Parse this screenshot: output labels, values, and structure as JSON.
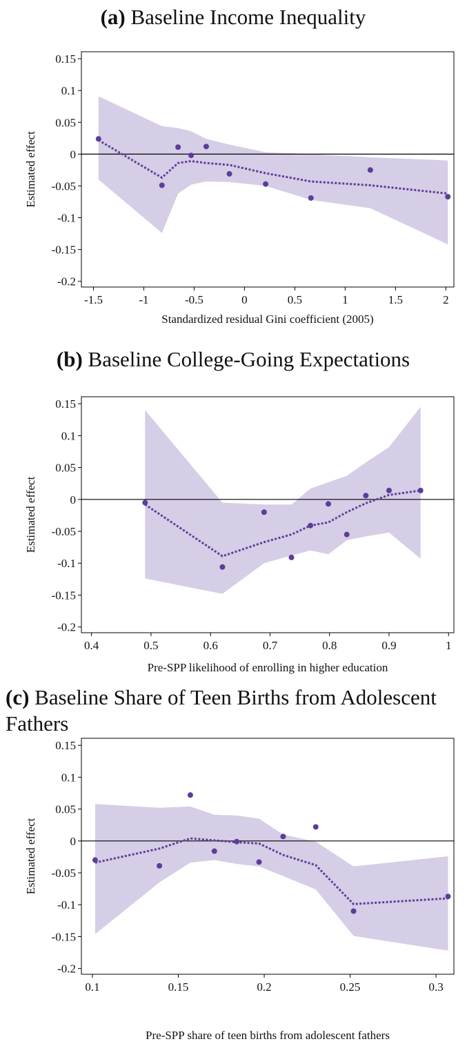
{
  "chart_data": [
    {
      "type": "scatter",
      "panel": "(a)",
      "title": "Baseline Income Inequality",
      "xlabel": "Standardized residual Gini coefficient (2005)",
      "ylabel": "Estimated effect",
      "x": [
        -1.45,
        -0.82,
        -0.66,
        -0.53,
        -0.38,
        -0.15,
        0.21,
        0.66,
        1.25,
        2.02
      ],
      "values": [
        0.024,
        -0.049,
        0.011,
        -0.002,
        0.012,
        -0.031,
        -0.047,
        -0.069,
        -0.025,
        -0.067
      ],
      "fit": [
        0.022,
        -0.037,
        -0.014,
        -0.011,
        -0.014,
        -0.017,
        -0.03,
        -0.043,
        -0.049,
        -0.062
      ],
      "upper": [
        0.091,
        0.044,
        0.041,
        0.036,
        0.024,
        0.015,
        0.003,
        0.0,
        -0.005,
        -0.01
      ],
      "lower": [
        -0.04,
        -0.124,
        -0.062,
        -0.048,
        -0.043,
        -0.044,
        -0.05,
        -0.072,
        -0.085,
        -0.142
      ],
      "color": "#5e3c99",
      "band_color": "#d6cde6",
      "zero_line": true,
      "xlim": [
        -1.62,
        2.08
      ],
      "ylim": [
        -0.209,
        0.161
      ],
      "xticks": [
        -1.5,
        -1,
        -0.5,
        0,
        0.5,
        1,
        1.5,
        2
      ],
      "yticks": [
        0.15,
        0.1,
        0.05,
        0,
        -0.05,
        -0.1,
        -0.15,
        -0.2
      ]
    },
    {
      "type": "scatter",
      "panel": "(b)",
      "title": "Baseline College-Going Expectations",
      "xlabel": "Pre-SPP likelihood of enrolling in higher education",
      "ylabel": "Estimated effect",
      "x": [
        0.49,
        0.62,
        0.69,
        0.736,
        0.768,
        0.798,
        0.829,
        0.861,
        0.9,
        0.953
      ],
      "values": [
        -0.005,
        -0.106,
        -0.02,
        -0.091,
        -0.041,
        -0.007,
        -0.055,
        0.006,
        0.014,
        0.014
      ],
      "fit": [
        -0.008,
        -0.089,
        -0.067,
        -0.055,
        -0.041,
        -0.036,
        -0.02,
        -0.006,
        0.007,
        0.014
      ],
      "upper": [
        0.14,
        -0.005,
        -0.008,
        -0.008,
        0.017,
        0.027,
        0.037,
        0.058,
        0.082,
        0.145
      ],
      "lower": [
        -0.124,
        -0.148,
        -0.1,
        -0.088,
        -0.08,
        -0.086,
        -0.064,
        -0.058,
        -0.052,
        -0.093
      ],
      "color": "#5e3c99",
      "band_color": "#d6cde6",
      "zero_line": true,
      "xlim": [
        0.383,
        1.009
      ],
      "ylim": [
        -0.209,
        0.161
      ],
      "xticks": [
        0.4,
        0.5,
        0.6,
        0.7,
        0.8,
        0.9,
        1
      ],
      "yticks": [
        0.15,
        0.1,
        0.05,
        0,
        -0.05,
        -0.1,
        -0.15,
        -0.2
      ]
    },
    {
      "type": "scatter",
      "panel": "(c)",
      "title": "Baseline Share of Teen Births from Adolescent Fathers",
      "xlabel": "Pre-SPP share of teen births from adolescent fathers",
      "ylabel": "Estimated effect",
      "x": [
        0.1016,
        0.139,
        0.157,
        0.171,
        0.184,
        0.197,
        0.211,
        0.23,
        0.252,
        0.307
      ],
      "values": [
        -0.03,
        -0.039,
        0.072,
        -0.016,
        -0.001,
        -0.033,
        0.007,
        0.022,
        -0.11,
        -0.087
      ],
      "fit": [
        -0.034,
        -0.012,
        0.004,
        0.001,
        -0.002,
        -0.004,
        -0.022,
        -0.038,
        -0.099,
        -0.09
      ],
      "upper": [
        0.058,
        0.052,
        0.054,
        0.041,
        0.04,
        0.035,
        0.01,
        -0.001,
        -0.04,
        -0.024
      ],
      "lower": [
        -0.146,
        -0.065,
        -0.034,
        -0.03,
        -0.036,
        -0.04,
        -0.055,
        -0.076,
        -0.149,
        -0.172
      ],
      "color": "#5e3c99",
      "band_color": "#d6cde6",
      "zero_line": true,
      "xlim": [
        0.0936,
        0.3104
      ],
      "ylim": [
        -0.209,
        0.161
      ],
      "xticks": [
        0.1,
        0.15,
        0.2,
        0.25,
        0.3
      ],
      "yticks": [
        0.15,
        0.1,
        0.05,
        0,
        -0.05,
        -0.1,
        -0.15,
        -0.2
      ]
    }
  ]
}
